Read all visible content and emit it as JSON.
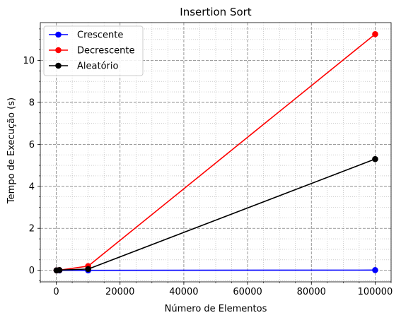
{
  "chart_data": {
    "type": "line",
    "title": "Insertion Sort",
    "xlabel": "Número de Elementos",
    "ylabel": "Tempo de Execução (s)",
    "x": [
      100,
      1000,
      10000,
      100000
    ],
    "series": [
      {
        "name": "Crescente",
        "color": "#0000ff",
        "values": [
          0.0,
          0.0,
          0.0,
          0.01
        ]
      },
      {
        "name": "Decrescente",
        "color": "#ff0000",
        "values": [
          0.0,
          0.01,
          0.2,
          11.25
        ]
      },
      {
        "name": "Aleatório",
        "color": "#000000",
        "values": [
          0.0,
          0.01,
          0.06,
          5.3
        ]
      }
    ],
    "xlim": [
      -5000,
      105000
    ],
    "ylim": [
      -0.55,
      11.8
    ],
    "xticks": [
      0,
      20000,
      40000,
      60000,
      80000,
      100000
    ],
    "xtick_labels": [
      "0",
      "20000",
      "40000",
      "60000",
      "80000",
      "100000"
    ],
    "yticks": [
      0,
      2,
      4,
      6,
      8,
      10
    ],
    "ytick_labels": [
      "0",
      "2",
      "4",
      "6",
      "8",
      "10"
    ],
    "grid": true,
    "minor_grid": true,
    "legend_position": "top-left"
  }
}
